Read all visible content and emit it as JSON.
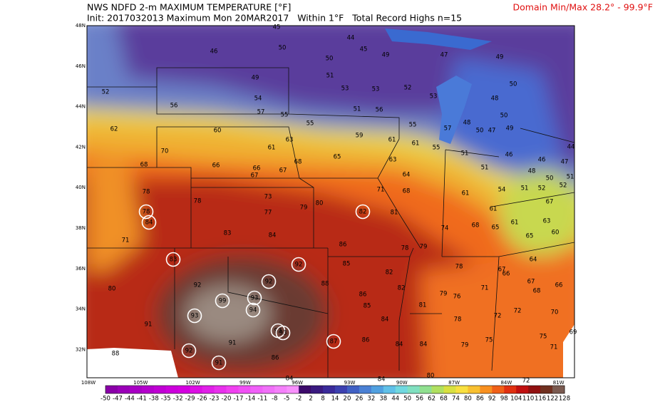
{
  "header": {
    "title": "NWS NDFD 2-m MAXIMUM TEMPERATURE [°F]",
    "domain": "Domain Min/Max  28.2° -  99.9°F",
    "subtitle": "Init: 2017032013 Maximum Mon 20MAR2017   Within 1°F   Total Record Highs n=15"
  },
  "lat_labels": [
    "48N",
    "46N",
    "44N",
    "42N",
    "40N",
    "38N",
    "36N",
    "34N",
    "32N"
  ],
  "lon_labels": [
    "108W",
    "105W",
    "102W",
    "99W",
    "96W",
    "93W",
    "90W",
    "87W",
    "84W",
    "81W"
  ],
  "colorbar": {
    "labels": [
      -50,
      -47,
      -44,
      -41,
      -38,
      -35,
      -32,
      -29,
      -26,
      -23,
      -20,
      -17,
      -14,
      -11,
      -8,
      -5,
      -2,
      2,
      8,
      14,
      20,
      26,
      32,
      38,
      44,
      50,
      56,
      62,
      68,
      74,
      80,
      86,
      92,
      98,
      104,
      110,
      116,
      122,
      128
    ],
    "colors": [
      "#8a00a8",
      "#9a00b8",
      "#a800c4",
      "#b400cc",
      "#c000d4",
      "#cc00dc",
      "#d400e0",
      "#dc10e4",
      "#e020e8",
      "#e830ec",
      "#f040f0",
      "#f050f4",
      "#f060f8",
      "#f070f8",
      "#f480fa",
      "#f890fc",
      "#3c0a6a",
      "#3a1a80",
      "#3a2a9a",
      "#3c40b0",
      "#4060c4",
      "#4a80d4",
      "#50a0e0",
      "#60c0e8",
      "#70d8e0",
      "#80e0c0",
      "#90e090",
      "#b0e060",
      "#d8e040",
      "#f8e040",
      "#f8c030",
      "#f89020",
      "#f06018",
      "#e03010",
      "#c01010",
      "#901010",
      "#703020",
      "#7a5a50"
    ]
  },
  "map_values": [
    46,
    45,
    50,
    44,
    45,
    49,
    50,
    47,
    49,
    49,
    51,
    53,
    53,
    52,
    53,
    52,
    56,
    54,
    57,
    55,
    51,
    56,
    50,
    48,
    50,
    49,
    48,
    50,
    47,
    62,
    60,
    55,
    59,
    55,
    57,
    70,
    61,
    63,
    61,
    61,
    55,
    51,
    46,
    46,
    47,
    44,
    68,
    66,
    66,
    67,
    67,
    68,
    65,
    63,
    64,
    51,
    48,
    50,
    51,
    68,
    71,
    61,
    54,
    51,
    52,
    52,
    78,
    78,
    73,
    79,
    80,
    77,
    81,
    61,
    67,
    71,
    83,
    84,
    74,
    68,
    65,
    61,
    63,
    65,
    60,
    86,
    79,
    78,
    85,
    82,
    78,
    64,
    67,
    66,
    67,
    66,
    80,
    92,
    88,
    86,
    82,
    79,
    76,
    71,
    68,
    85,
    81,
    72,
    72,
    70,
    91,
    84,
    78,
    75,
    75,
    69,
    91,
    86,
    84,
    84,
    79,
    71,
    88,
    86,
    84,
    84,
    80,
    72
  ],
  "record_highs": [
    78,
    84,
    82,
    83,
    92,
    92,
    93,
    99,
    94,
    93,
    93,
    93,
    87,
    92,
    91
  ]
}
